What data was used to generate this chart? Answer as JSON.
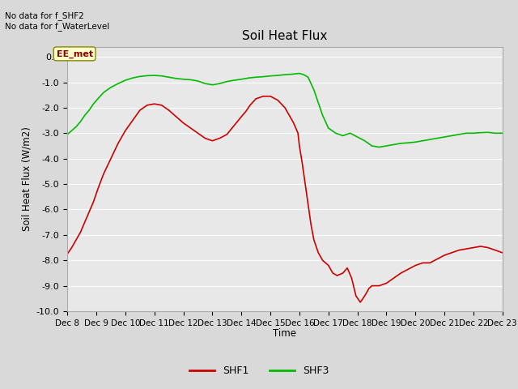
{
  "title": "Soil Heat Flux",
  "ylabel": "Soil Heat Flux (W/m2)",
  "xlabel": "Time",
  "ylim": [
    -10.0,
    0.4
  ],
  "yticks": [
    0.0,
    -1.0,
    -2.0,
    -3.0,
    -4.0,
    -5.0,
    -6.0,
    -7.0,
    -8.0,
    -9.0,
    -10.0
  ],
  "xtick_labels": [
    "Dec 8",
    "Dec 9",
    "Dec 10",
    "Dec 11",
    "Dec 12",
    "Dec 13",
    "Dec 14",
    "Dec 15",
    "Dec 16",
    "Dec 17",
    "Dec 18",
    "Dec 19",
    "Dec 20",
    "Dec 21",
    "Dec 22",
    "Dec 23"
  ],
  "fig_bg_color": "#d9d9d9",
  "plot_bg_color": "#e8e8e8",
  "grid_color": "#ffffff",
  "text_top_left": "No data for f_SHF2\nNo data for f_WaterLevel",
  "annotation_box": "EE_met",
  "shf1_color": "#cc0000",
  "shf3_color": "#00bb00",
  "shf1_x": [
    0,
    0.3,
    0.6,
    0.9,
    1.2,
    1.5,
    1.8,
    2.1,
    2.5,
    3.0,
    3.5,
    4.0,
    4.5,
    5.0,
    5.5,
    6.0,
    6.5,
    7.0,
    7.5,
    8.0,
    8.5,
    9.0,
    9.5,
    10.0,
    10.5,
    11.0,
    11.5,
    12.0,
    12.3,
    12.6,
    13.0,
    13.5,
    14.0,
    14.5,
    15.0,
    15.3,
    15.6,
    15.9,
    16.0,
    16.2,
    16.4,
    16.6,
    16.8,
    17.0,
    17.3,
    17.6,
    18.0,
    18.3,
    18.6,
    19.0,
    19.3,
    19.6,
    19.9,
    20.2,
    20.5,
    20.8,
    21.0,
    21.5,
    22.0,
    22.5,
    23.0,
    23.5,
    24.0,
    24.5,
    25.0,
    25.5,
    26.0,
    26.5,
    27.0,
    27.5,
    28.0,
    28.5,
    29.0,
    29.5,
    30.0
  ],
  "shf1_y": [
    -7.75,
    -7.5,
    -7.2,
    -6.9,
    -6.5,
    -6.1,
    -5.7,
    -5.2,
    -4.6,
    -4.0,
    -3.4,
    -2.9,
    -2.5,
    -2.1,
    -1.9,
    -1.85,
    -1.9,
    -2.1,
    -2.35,
    -2.6,
    -2.8,
    -3.0,
    -3.2,
    -3.3,
    -3.2,
    -3.05,
    -2.7,
    -2.35,
    -2.15,
    -1.9,
    -1.65,
    -1.55,
    -1.55,
    -1.7,
    -2.0,
    -2.3,
    -2.6,
    -3.0,
    -3.5,
    -4.2,
    -5.0,
    -5.8,
    -6.6,
    -7.2,
    -7.7,
    -8.0,
    -8.2,
    -8.5,
    -8.6,
    -8.5,
    -8.3,
    -8.7,
    -9.4,
    -9.65,
    -9.4,
    -9.1,
    -9.0,
    -9.0,
    -8.9,
    -8.7,
    -8.5,
    -8.35,
    -8.2,
    -8.1,
    -8.1,
    -7.95,
    -7.8,
    -7.7,
    -7.6,
    -7.55,
    -7.5,
    -7.45,
    -7.5,
    -7.6,
    -7.7
  ],
  "shf3_x": [
    0,
    0.3,
    0.6,
    0.9,
    1.2,
    1.5,
    1.8,
    2.1,
    2.5,
    3.0,
    3.5,
    4.0,
    4.5,
    5.0,
    5.5,
    6.0,
    6.5,
    7.0,
    7.5,
    8.0,
    8.5,
    9.0,
    9.5,
    10.0,
    10.5,
    11.0,
    11.5,
    12.0,
    12.5,
    13.0,
    13.5,
    14.0,
    14.5,
    15.0,
    15.5,
    16.0,
    16.3,
    16.6,
    17.0,
    17.3,
    17.6,
    18.0,
    18.5,
    19.0,
    19.5,
    20.0,
    20.5,
    21.0,
    21.5,
    22.0,
    22.5,
    23.0,
    23.5,
    24.0,
    24.5,
    25.0,
    25.5,
    26.0,
    26.5,
    27.0,
    27.5,
    28.0,
    28.5,
    29.0,
    29.5,
    30.0
  ],
  "shf3_y": [
    -3.05,
    -2.9,
    -2.75,
    -2.55,
    -2.3,
    -2.1,
    -1.85,
    -1.65,
    -1.4,
    -1.2,
    -1.05,
    -0.92,
    -0.83,
    -0.77,
    -0.74,
    -0.73,
    -0.75,
    -0.8,
    -0.85,
    -0.88,
    -0.9,
    -0.95,
    -1.05,
    -1.1,
    -1.05,
    -0.97,
    -0.92,
    -0.88,
    -0.83,
    -0.8,
    -0.78,
    -0.75,
    -0.73,
    -0.7,
    -0.68,
    -0.65,
    -0.7,
    -0.8,
    -1.3,
    -1.8,
    -2.3,
    -2.8,
    -3.0,
    -3.1,
    -3.0,
    -3.15,
    -3.3,
    -3.5,
    -3.55,
    -3.5,
    -3.45,
    -3.4,
    -3.38,
    -3.35,
    -3.3,
    -3.25,
    -3.2,
    -3.15,
    -3.1,
    -3.05,
    -3.0,
    -3.0,
    -2.98,
    -2.97,
    -3.0,
    -3.0
  ]
}
